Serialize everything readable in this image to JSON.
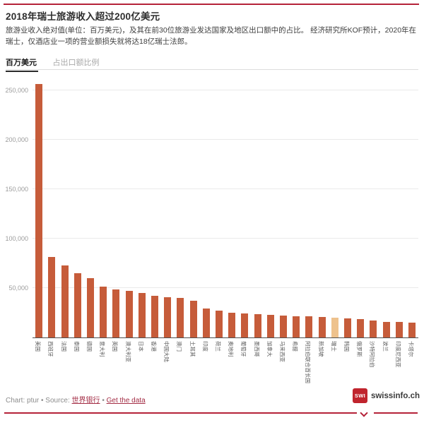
{
  "colors": {
    "rule_red": "#b52239",
    "logo_red": "#c0242d",
    "link_red": "#a32c44",
    "bar": "#c65c3a",
    "bar_highlight": "#eec28d"
  },
  "header": {
    "title": "2018年瑞士旅游收入超过200亿美元",
    "description": "旅游业收入绝对值(单位：百万美元)，及其在前30位旅游业发达国家及地区出口额中的占比。 经济研究所KOF预计，2020年在瑞士，仅酒店业一项的营业额损失就将达18亿瑞士法郎。"
  },
  "tabs": [
    {
      "label": "百万美元",
      "active": true
    },
    {
      "label": "占出口额比例",
      "active": false
    }
  ],
  "chart_data": {
    "type": "bar",
    "title": "2018年瑞士旅游收入超过200亿美元",
    "ylabel": "百万美元",
    "xlabel": "",
    "categories": [
      "美国",
      "西班牙",
      "法国",
      "泰国",
      "德国",
      "意大利",
      "英国",
      "澳大利亚",
      "日本",
      "香港",
      "中国大陆",
      "澳门",
      "土耳其",
      "印度",
      "荷兰",
      "奥地利",
      "葡萄牙",
      "墨西哥",
      "加拿大",
      "马来西亚",
      "希腊",
      "阿拉伯联合酋长国",
      "新加坡",
      "瑞士",
      "韩国",
      "俄罗斯",
      "沙特阿拉伯",
      "波兰",
      "印度尼西亚",
      "卡塔尔"
    ],
    "values": [
      256145,
      81250,
      73125,
      65242,
      60260,
      51602,
      48515,
      47327,
      45276,
      41910,
      40386,
      40226,
      37140,
      29143,
      26954,
      25237,
      24069,
      23802,
      22811,
      21965,
      21594,
      21390,
      20416,
      20160,
      19487,
      18670,
      16904,
      15938,
      15599,
      15079
    ],
    "highlight_index": 23,
    "highlight_category": "瑞士",
    "ylim": [
      0,
      260000
    ],
    "ytick_step": 50000,
    "ytick_labels": [
      "50,000",
      "100,000",
      "150,000",
      "200,000",
      "250,000"
    ],
    "grid": true,
    "legend": "none"
  },
  "footer": {
    "attribution_prefix": "Chart: ptur • Source: ",
    "source_link": "世界银行",
    "separator": " • ",
    "data_link": "Get the data",
    "logo_text": "SWI",
    "brand": "swissinfo.ch"
  }
}
